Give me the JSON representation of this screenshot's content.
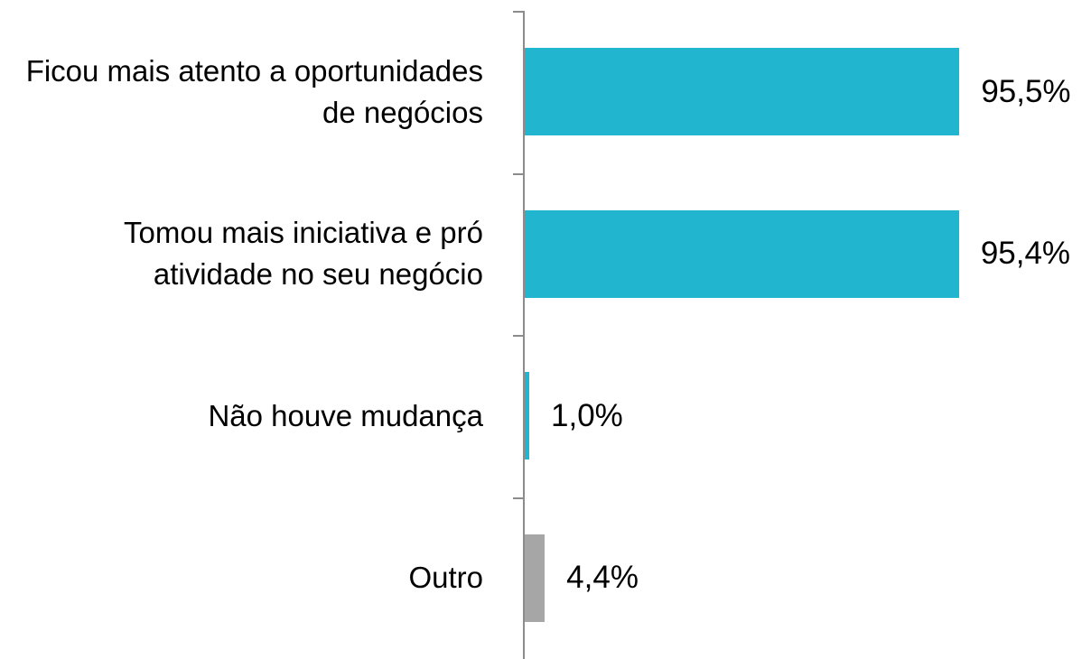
{
  "chart_data": {
    "type": "bar",
    "orientation": "horizontal",
    "categories": [
      "Ficou mais atento a oportunidades de negócios",
      "Tomou mais iniciativa e pró atividade no seu negócio",
      "Não houve mudança",
      "Outro"
    ],
    "values": [
      95.5,
      95.4,
      1.0,
      4.4
    ],
    "value_labels": [
      "95,5%",
      "95,4%",
      "1,0%",
      "4,4%"
    ],
    "colors": [
      "#22b5cf",
      "#22b5cf",
      "#22b5cf",
      "#a6a6a6"
    ]
  }
}
